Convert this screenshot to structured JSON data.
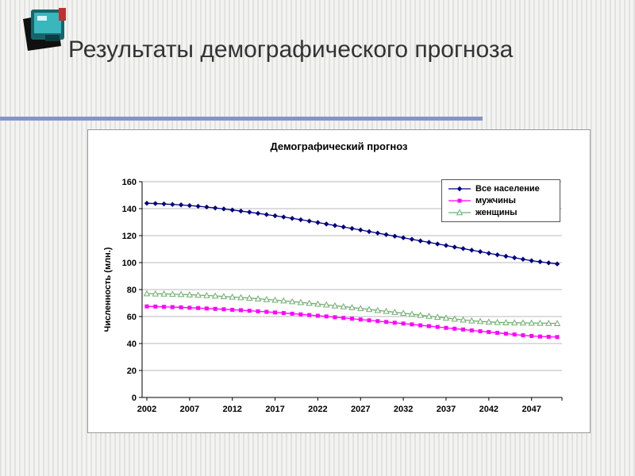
{
  "slide": {
    "title": "Результаты демографического прогноза"
  },
  "chart_data": {
    "type": "line",
    "title": "Демографический прогноз",
    "ylabel": "Численность (млн.)",
    "xlabel": "",
    "ylim": [
      0,
      160
    ],
    "ytick_step": 20,
    "x_start": 2002,
    "x_end": 2050,
    "xticks": [
      2002,
      2007,
      2012,
      2017,
      2022,
      2027,
      2032,
      2037,
      2042,
      2047
    ],
    "grid": true,
    "legend_position": "top-right",
    "series": [
      {
        "name": "Все население",
        "color": "#000080",
        "marker": "diamond",
        "values": [
          144.0,
          143.8,
          143.5,
          143.1,
          142.8,
          142.3,
          141.8,
          141.2,
          140.5,
          139.8,
          139.0,
          138.2,
          137.4,
          136.5,
          135.6,
          134.7,
          133.8,
          132.8,
          131.8,
          130.8,
          129.7,
          128.6,
          127.5,
          126.4,
          125.3,
          124.2,
          123.0,
          121.9,
          120.7,
          119.6,
          118.4,
          117.3,
          116.1,
          115.0,
          113.8,
          112.7,
          111.5,
          110.4,
          109.2,
          108.1,
          106.9,
          105.8,
          104.7,
          103.6,
          102.5,
          101.4,
          100.6,
          99.8,
          99.0
        ]
      },
      {
        "name": "мужчины",
        "color": "#ff00ff",
        "marker": "square",
        "values": [
          67.5,
          67.4,
          67.2,
          67.0,
          66.8,
          66.5,
          66.3,
          66.0,
          65.7,
          65.4,
          65.0,
          64.7,
          64.3,
          63.9,
          63.5,
          63.0,
          62.6,
          62.1,
          61.6,
          61.1,
          60.6,
          60.1,
          59.5,
          59.0,
          58.4,
          57.8,
          57.2,
          56.6,
          56.0,
          55.4,
          54.8,
          54.2,
          53.5,
          52.9,
          52.3,
          51.6,
          51.0,
          50.4,
          49.7,
          49.1,
          48.5,
          47.9,
          47.3,
          46.7,
          46.1,
          45.6,
          45.2,
          45.0,
          44.8
        ]
      },
      {
        "name": "женщины",
        "color": "#6fae6f",
        "marker": "triangle",
        "marker_fill": "#ffffff",
        "values": [
          77.0,
          76.9,
          76.8,
          76.6,
          76.4,
          76.2,
          75.9,
          75.6,
          75.3,
          74.9,
          74.5,
          74.1,
          73.7,
          73.2,
          72.7,
          72.2,
          71.7,
          71.1,
          70.5,
          69.9,
          69.3,
          68.7,
          68.0,
          67.4,
          66.7,
          66.0,
          65.3,
          64.6,
          63.9,
          63.2,
          62.5,
          61.8,
          61.0,
          60.3,
          59.6,
          58.9,
          58.2,
          57.5,
          56.9,
          56.4,
          56.0,
          55.7,
          55.5,
          55.4,
          55.3,
          55.2,
          55.1,
          55.0,
          54.9
        ]
      }
    ]
  }
}
